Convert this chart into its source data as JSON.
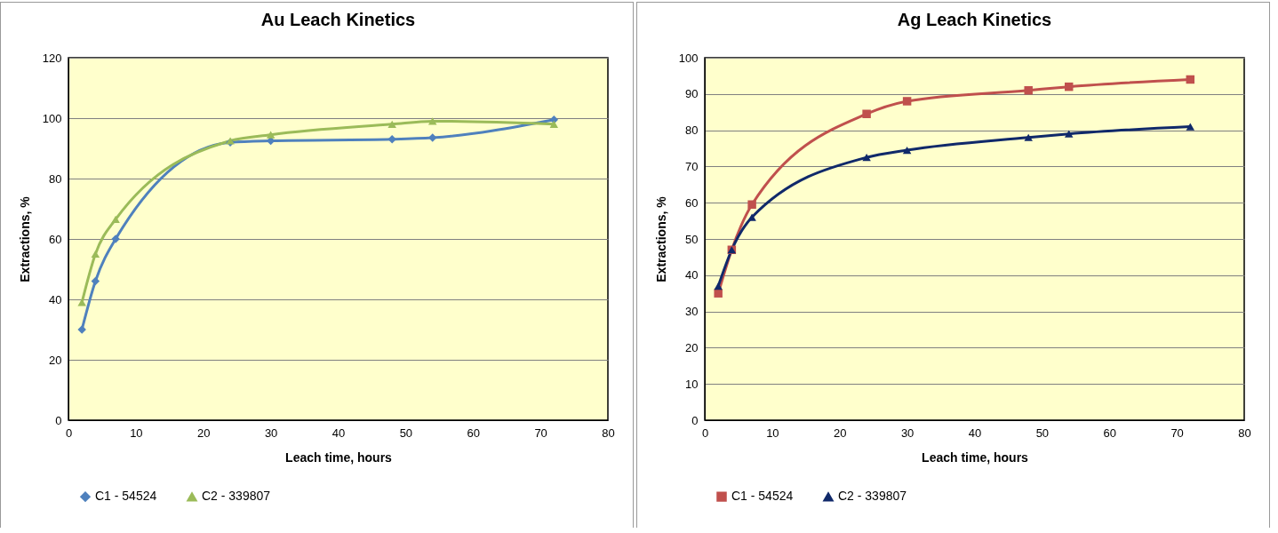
{
  "chart_data": [
    {
      "type": "line",
      "title": "Au Leach Kinetics",
      "xlabel": "Leach time, hours",
      "ylabel": "Extractions, %",
      "x": [
        2,
        4,
        7,
        24,
        30,
        48,
        54,
        72
      ],
      "xlim": [
        0,
        80
      ],
      "xticks": [
        0,
        10,
        20,
        30,
        40,
        50,
        60,
        70,
        80
      ],
      "ylim": [
        0,
        120
      ],
      "yticks": [
        0,
        20,
        40,
        60,
        80,
        100,
        120
      ],
      "grid": "y",
      "legend": "bottom",
      "series": [
        {
          "name": "C1 - 54524",
          "color": "#4f81bd",
          "marker": "diamond",
          "values": [
            30,
            46,
            60,
            92,
            92.5,
            93,
            93.5,
            99.5
          ]
        },
        {
          "name": "C2 - 339807",
          "color": "#9bbb59",
          "marker": "triangle",
          "values": [
            39,
            55,
            66.5,
            92.5,
            94.5,
            98,
            99,
            98
          ]
        }
      ]
    },
    {
      "type": "line",
      "title": "Ag Leach Kinetics",
      "xlabel": "Leach time, hours",
      "ylabel": "Extractions, %",
      "x": [
        2,
        4,
        7,
        24,
        30,
        48,
        54,
        72
      ],
      "xlim": [
        0,
        80
      ],
      "xticks": [
        0,
        10,
        20,
        30,
        40,
        50,
        60,
        70,
        80
      ],
      "ylim": [
        0,
        100
      ],
      "yticks": [
        0,
        10,
        20,
        30,
        40,
        50,
        60,
        70,
        80,
        90,
        100
      ],
      "grid": "y",
      "legend": "bottom",
      "series": [
        {
          "name": "C1 - 54524",
          "color": "#c0504d",
          "marker": "square",
          "values": [
            35,
            47,
            59.5,
            84.5,
            88,
            91,
            92,
            94
          ]
        },
        {
          "name": "C2 - 339807",
          "color": "#10296a",
          "marker": "triangle",
          "values": [
            37,
            47,
            56,
            72.5,
            74.5,
            78,
            79,
            81
          ]
        }
      ]
    }
  ]
}
